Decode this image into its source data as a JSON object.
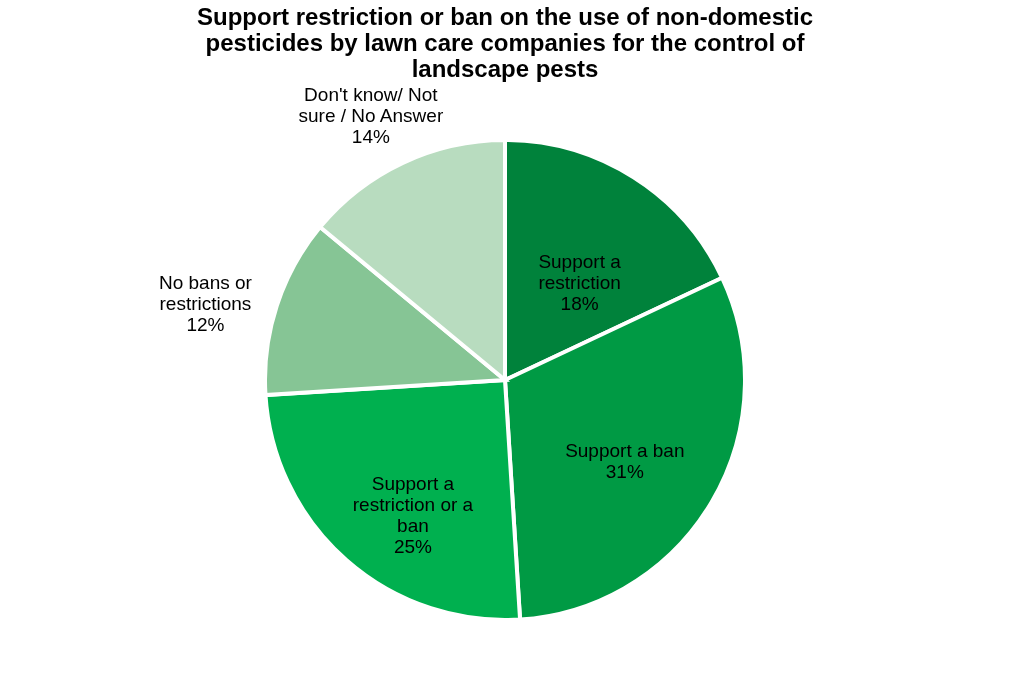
{
  "chart_data": {
    "type": "pie",
    "title": "Support restriction or ban on the use of non-domestic pesticides by lawn care companies for the control of landscape pests",
    "categories": [
      "Support a restriction",
      "Support a ban",
      "Support a restriction or a ban",
      "No bans or restrictions",
      "Don't know/ Not sure / No Answer"
    ],
    "values": [
      18,
      31,
      25,
      12,
      14
    ],
    "colors": [
      "#00823b",
      "#009a44",
      "#00b04f",
      "#86c595",
      "#b8dcbf"
    ],
    "value_labels": [
      "18%",
      "31%",
      "25%",
      "12%",
      "14%"
    ],
    "legend": false
  }
}
